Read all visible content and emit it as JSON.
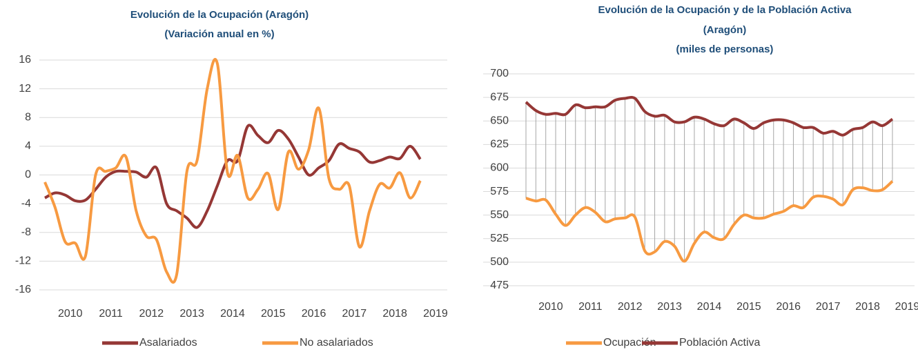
{
  "chart_data": [
    {
      "type": "line",
      "title": [
        "Evolución de la Ocupación (Aragón)",
        "(Variación anual en %)"
      ],
      "categories": [
        null,
        null,
        "2010",
        null,
        null,
        null,
        "2011",
        null,
        null,
        null,
        "2012",
        null,
        null,
        null,
        "2013",
        null,
        null,
        null,
        "2014",
        null,
        null,
        null,
        "2015",
        null,
        null,
        null,
        "2016",
        null,
        null,
        null,
        "2017",
        null,
        null,
        null,
        "2018",
        null,
        null,
        null,
        "2019"
      ],
      "series": [
        {
          "name": "Asalariados",
          "color": "#953735",
          "values": [
            -3.2,
            -2.5,
            -2.8,
            -3.6,
            -3.5,
            -2,
            -0.3,
            0.5,
            0.5,
            0.4,
            -0.3,
            1,
            -4,
            -5,
            -6,
            -7.3,
            -5,
            -1.5,
            2,
            2,
            6.8,
            5.5,
            4.5,
            6.2,
            5,
            2.5,
            0,
            1,
            2,
            4.3,
            3.7,
            3.2,
            1.8,
            2,
            2.5,
            2.3,
            4,
            2.2,
            null
          ]
        },
        {
          "name": "No asalariados",
          "color": "#f79a41",
          "values": [
            -1,
            -4.5,
            -9.3,
            -9.5,
            -11.3,
            0,
            0.5,
            1,
            2.5,
            -5,
            -8.5,
            -9,
            -13.5,
            -13.8,
            0.5,
            2,
            12,
            15.5,
            0.3,
            2.7,
            -3.2,
            -2,
            0.2,
            -4.8,
            3.2,
            0.8,
            3.5,
            9.3,
            -0.5,
            -2,
            -1.5,
            -10,
            -5,
            -1.3,
            -1.8,
            0.3,
            -3.2,
            -0.8,
            null
          ]
        }
      ],
      "ylim": [
        -16,
        16
      ],
      "yticks": [
        -16,
        -12,
        -8,
        -4,
        0,
        4,
        8,
        12,
        16
      ],
      "grid": true,
      "legend": "bottom"
    },
    {
      "type": "range-line",
      "title": [
        "Evolución de la Ocupación y de la Población Activa",
        "(Aragón)",
        "(miles de personas)"
      ],
      "categories": [
        null,
        null,
        "2010",
        null,
        null,
        null,
        "2011",
        null,
        null,
        null,
        "2012",
        null,
        null,
        null,
        "2013",
        null,
        null,
        null,
        "2014",
        null,
        null,
        null,
        "2015",
        null,
        null,
        null,
        "2016",
        null,
        null,
        null,
        "2017",
        null,
        null,
        null,
        "2018",
        null,
        null,
        null,
        "2019"
      ],
      "series": [
        {
          "name": "Ocupación",
          "color": "#f79a41",
          "values": [
            568,
            565,
            566,
            551,
            539,
            550,
            558,
            553,
            543,
            546,
            547,
            548,
            512,
            511,
            522,
            517,
            501,
            520,
            532,
            526,
            525,
            540,
            550,
            547,
            547,
            551,
            554,
            560,
            558,
            569,
            570,
            567,
            561,
            577,
            579,
            576,
            577,
            586,
            null
          ]
        },
        {
          "name": "Población Activa",
          "color": "#953735",
          "values": [
            670,
            661,
            657,
            658,
            657,
            667,
            664,
            665,
            665,
            672,
            674,
            674,
            660,
            655,
            656,
            649,
            649,
            654,
            652,
            647,
            645,
            652,
            648,
            642,
            648,
            651,
            651,
            648,
            643,
            643,
            637,
            639,
            635,
            641,
            643,
            649,
            645,
            652,
            null
          ]
        }
      ],
      "ylim": [
        475,
        700
      ],
      "yticks": [
        475,
        500,
        525,
        550,
        575,
        600,
        625,
        650,
        675,
        700
      ],
      "grid": true,
      "legend": "bottom"
    }
  ]
}
